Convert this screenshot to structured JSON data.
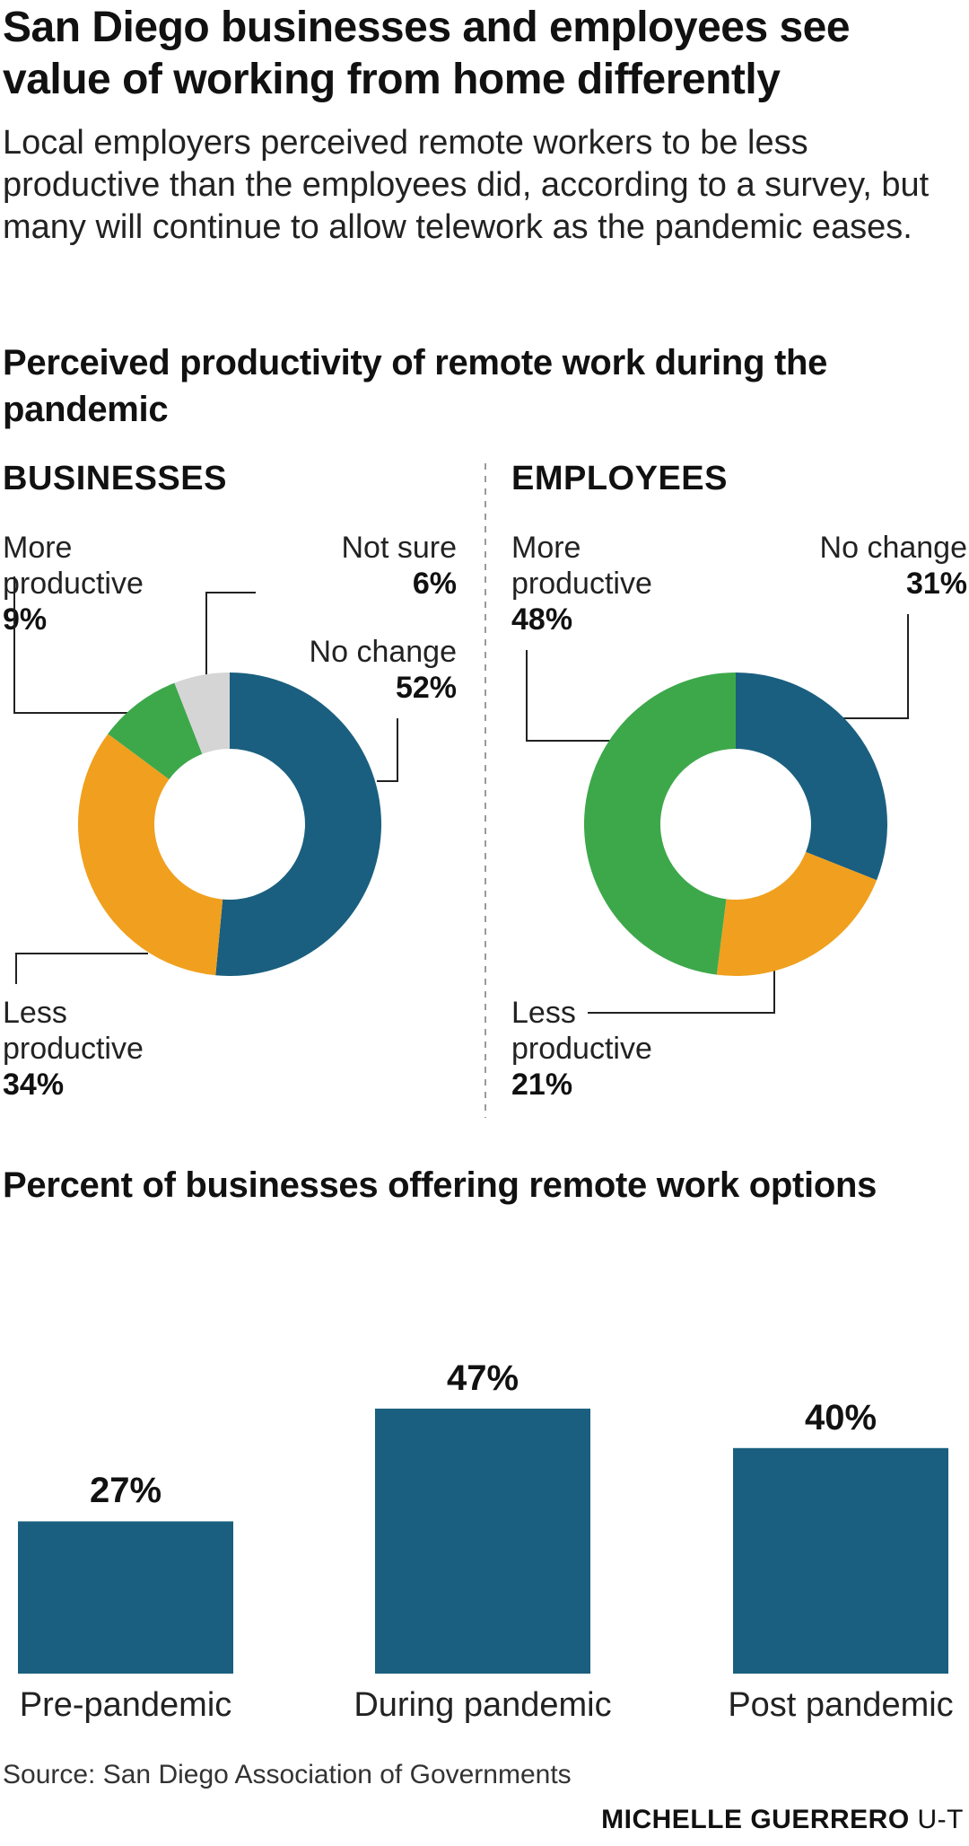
{
  "title": "San Diego businesses and employees see value of working from home differently",
  "subtitle": "Local employers perceived remote workers to be less productive than the employees did, according to a survey, but many will continue to allow telework as the pandemic eases.",
  "colors": {
    "no_change": "#1a5f7f",
    "less_productive": "#f0a01e",
    "more_productive": "#3da84a",
    "not_sure": "#d5d5d6",
    "bar": "#1a5f7f"
  },
  "source": "Source: San Diego Association of Governments",
  "credit": {
    "name": "MICHELLE GUERRERO",
    "org": "U-T"
  },
  "chart_data": [
    {
      "type": "pie",
      "donut": true,
      "title": "Perceived productivity of remote work during the pandemic",
      "subtitle": "BUSINESSES",
      "slices": [
        {
          "label_line1": "No change",
          "label_line2": "",
          "value": 52,
          "value_label": "52%"
        },
        {
          "label_line1": "Less",
          "label_line2": "productive",
          "value": 34,
          "value_label": "34%"
        },
        {
          "label_line1": "More",
          "label_line2": "productive",
          "value": 9,
          "value_label": "9%"
        },
        {
          "label_line1": "Not sure",
          "label_line2": "",
          "value": 6,
          "value_label": "6%"
        }
      ]
    },
    {
      "type": "pie",
      "donut": true,
      "subtitle": "EMPLOYEES",
      "slices": [
        {
          "label_line1": "No change",
          "label_line2": "",
          "value": 31,
          "value_label": "31%"
        },
        {
          "label_line1": "Less",
          "label_line2": "productive",
          "value": 21,
          "value_label": "21%"
        },
        {
          "label_line1": "More",
          "label_line2": "productive",
          "value": 48,
          "value_label": "48%"
        }
      ]
    },
    {
      "type": "bar",
      "title": "Percent of businesses offering remote work options",
      "categories": [
        "Pre-pandemic",
        "During pandemic",
        "Post pandemic"
      ],
      "values": [
        27,
        47,
        40
      ],
      "value_labels": [
        "27%",
        "47%",
        "40%"
      ]
    }
  ]
}
